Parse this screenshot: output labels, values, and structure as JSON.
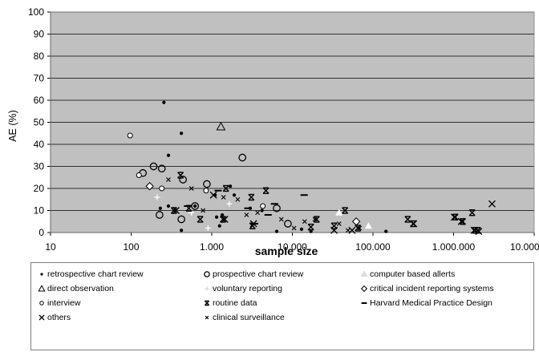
{
  "chart_data": {
    "type": "scatter",
    "title": "",
    "xlabel": "sample size",
    "ylabel": "AE (%)",
    "x_scale": "log",
    "xlim": [
      10,
      10000000
    ],
    "ylim": [
      0,
      100
    ],
    "x_tick_labels": [
      "10",
      "100",
      "1.000",
      "10.000",
      "100.000",
      "1.000.000",
      "10.000.000"
    ],
    "y_tick_labels": [
      "0",
      "10",
      "20",
      "30",
      "40",
      "50",
      "60",
      "70",
      "80",
      "90",
      "100"
    ],
    "grid": true,
    "plot_background": "#c0c0c0",
    "legend_position": "bottom",
    "series": [
      {
        "name": "retrospective chart review",
        "marker": "dot",
        "points": [
          [
            255,
            59
          ],
          [
            420,
            45
          ],
          [
            290,
            35
          ],
          [
            1700,
            21
          ],
          [
            1100,
            17
          ],
          [
            1900,
            17
          ],
          [
            620,
            12
          ],
          [
            1350,
            8
          ],
          [
            3000,
            11
          ],
          [
            290,
            12
          ],
          [
            230,
            11
          ],
          [
            4200,
            10
          ],
          [
            1150,
            7
          ],
          [
            420,
            1
          ],
          [
            1250,
            3
          ],
          [
            6400,
            0.5
          ],
          [
            13000,
            1.5
          ],
          [
            17000,
            0.5
          ],
          [
            145000,
            0.5
          ]
        ]
      },
      {
        "name": "prospective chart review",
        "marker": "circle",
        "points": [
          [
            190,
            30
          ],
          [
            240,
            29
          ],
          [
            140,
            27
          ],
          [
            870,
            22
          ],
          [
            440,
            24
          ],
          [
            620,
            12
          ],
          [
            420,
            6
          ],
          [
            225,
            8
          ],
          [
            6400,
            11
          ],
          [
            2400,
            34
          ],
          [
            8800,
            4
          ]
        ]
      },
      {
        "name": "computer based allerts",
        "marker": "triangle-white",
        "points": [
          [
            38000,
            9
          ],
          [
            88000,
            3
          ]
        ]
      },
      {
        "name": "direct observation",
        "marker": "triangle",
        "points": [
          [
            1300,
            48
          ]
        ]
      },
      {
        "name": "voluntary reporting",
        "marker": "plus-white",
        "points": [
          [
            210,
            16
          ],
          [
            560,
            9
          ],
          [
            900,
            2
          ],
          [
            1650,
            13
          ]
        ]
      },
      {
        "name": "critical incident reporting systems",
        "marker": "diamond",
        "points": [
          [
            170,
            21
          ],
          [
            62000,
            5
          ]
        ]
      },
      {
        "name": "interview",
        "marker": "small-circle",
        "points": [
          [
            97,
            44
          ],
          [
            125,
            26
          ],
          [
            240,
            20
          ],
          [
            850,
            19
          ],
          [
            4300,
            12
          ]
        ]
      },
      {
        "name": "routine data",
        "marker": "bowtie",
        "points": [
          [
            410,
            26
          ],
          [
            1500,
            20
          ],
          [
            3100,
            16
          ],
          [
            4700,
            19
          ],
          [
            3200,
            3
          ],
          [
            340,
            10
          ],
          [
            520,
            11
          ],
          [
            720,
            6
          ],
          [
            1380,
            6
          ],
          [
            17000,
            2.5
          ],
          [
            20000,
            6
          ],
          [
            33000,
            3
          ],
          [
            45000,
            10
          ],
          [
            65000,
            2
          ],
          [
            270000,
            6
          ],
          [
            315000,
            4
          ],
          [
            1050000,
            7
          ],
          [
            1300000,
            5
          ],
          [
            1700000,
            9
          ],
          [
            1850000,
            1
          ],
          [
            2000000,
            1
          ]
        ]
      },
      {
        "name": "Harvard Medical Practice Design",
        "marker": "dash",
        "points": [
          [
            500,
            12
          ],
          [
            1200,
            19
          ],
          [
            2800,
            11
          ],
          [
            6000,
            13
          ],
          [
            14000,
            17
          ],
          [
            5000,
            8
          ],
          [
            3400,
            4
          ]
        ]
      },
      {
        "name": "others",
        "marker": "x",
        "points": [
          [
            360,
            10
          ],
          [
            1050,
            17
          ],
          [
            1450,
            6
          ],
          [
            3300,
            4
          ],
          [
            33000,
            1
          ],
          [
            55000,
            1
          ],
          [
            320000,
            4
          ],
          [
            1020000,
            7
          ],
          [
            1250000,
            5
          ],
          [
            1800000,
            1
          ],
          [
            2050000,
            0.5
          ],
          [
            3000000,
            13
          ]
        ]
      },
      {
        "name": "clinical surveillance",
        "marker": "small-x",
        "points": [
          [
            290,
            24
          ],
          [
            560,
            20
          ],
          [
            780,
            10
          ],
          [
            1400,
            16
          ],
          [
            2100,
            15
          ],
          [
            2700,
            8
          ],
          [
            3700,
            9
          ],
          [
            7300,
            6
          ],
          [
            10500,
            2
          ],
          [
            14200,
            5
          ],
          [
            19000,
            6
          ],
          [
            38000,
            4
          ],
          [
            49000,
            1
          ],
          [
            68000,
            2
          ]
        ]
      }
    ]
  }
}
